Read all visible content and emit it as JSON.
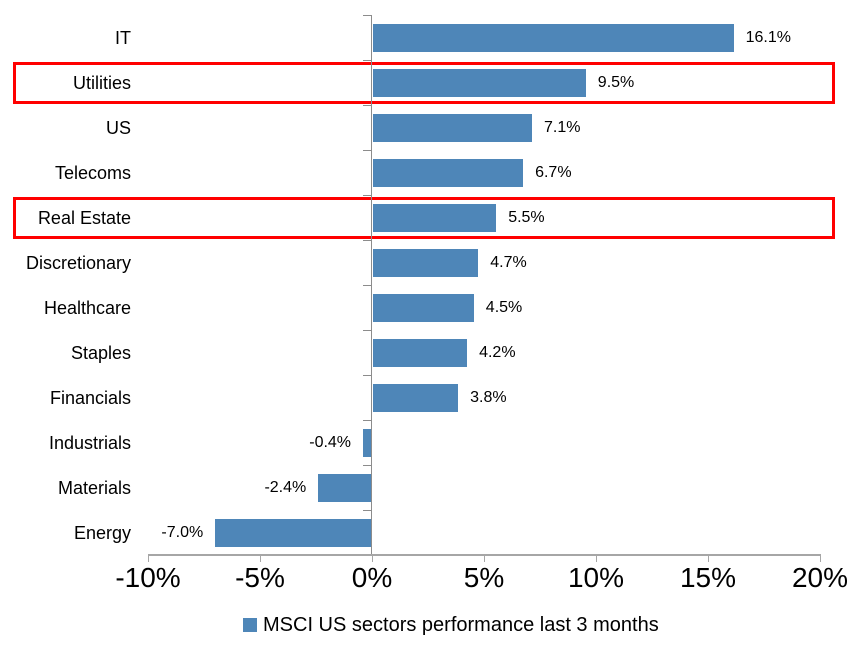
{
  "chart_data": {
    "type": "bar",
    "orientation": "horizontal",
    "categories": [
      "IT",
      "Utilities",
      "US",
      "Telecoms",
      "Real Estate",
      "Discretionary",
      "Healthcare",
      "Staples",
      "Financials",
      "Industrials",
      "Materials",
      "Energy"
    ],
    "values": [
      16.1,
      9.5,
      7.1,
      6.7,
      5.5,
      4.7,
      4.5,
      4.2,
      3.8,
      -0.4,
      -2.4,
      -7.0
    ],
    "value_labels": [
      "16.1%",
      "9.5%",
      "7.1%",
      "6.7%",
      "5.5%",
      "4.7%",
      "4.5%",
      "4.2%",
      "3.8%",
      "-0.4%",
      "-2.4%",
      "-7.0%"
    ],
    "highlighted_categories": [
      "Utilities",
      "Real Estate"
    ],
    "xlim": [
      -10,
      20
    ],
    "x_tick_values": [
      -10,
      -5,
      0,
      5,
      10,
      15,
      20
    ],
    "x_tick_labels": [
      "-10%",
      "-5%",
      "0%",
      "5%",
      "10%",
      "15%",
      "20%"
    ],
    "grid": false,
    "legend": "MSCI US sectors performance last 3 months",
    "legend_position": "bottom",
    "colors": {
      "bar": "#4E86B8",
      "highlight_box": "#FF0000",
      "value_axis_line": "#A6A6A6",
      "category_axis_line": "#8C8C8C",
      "text": "#000000",
      "background": "#FFFFFF"
    }
  }
}
